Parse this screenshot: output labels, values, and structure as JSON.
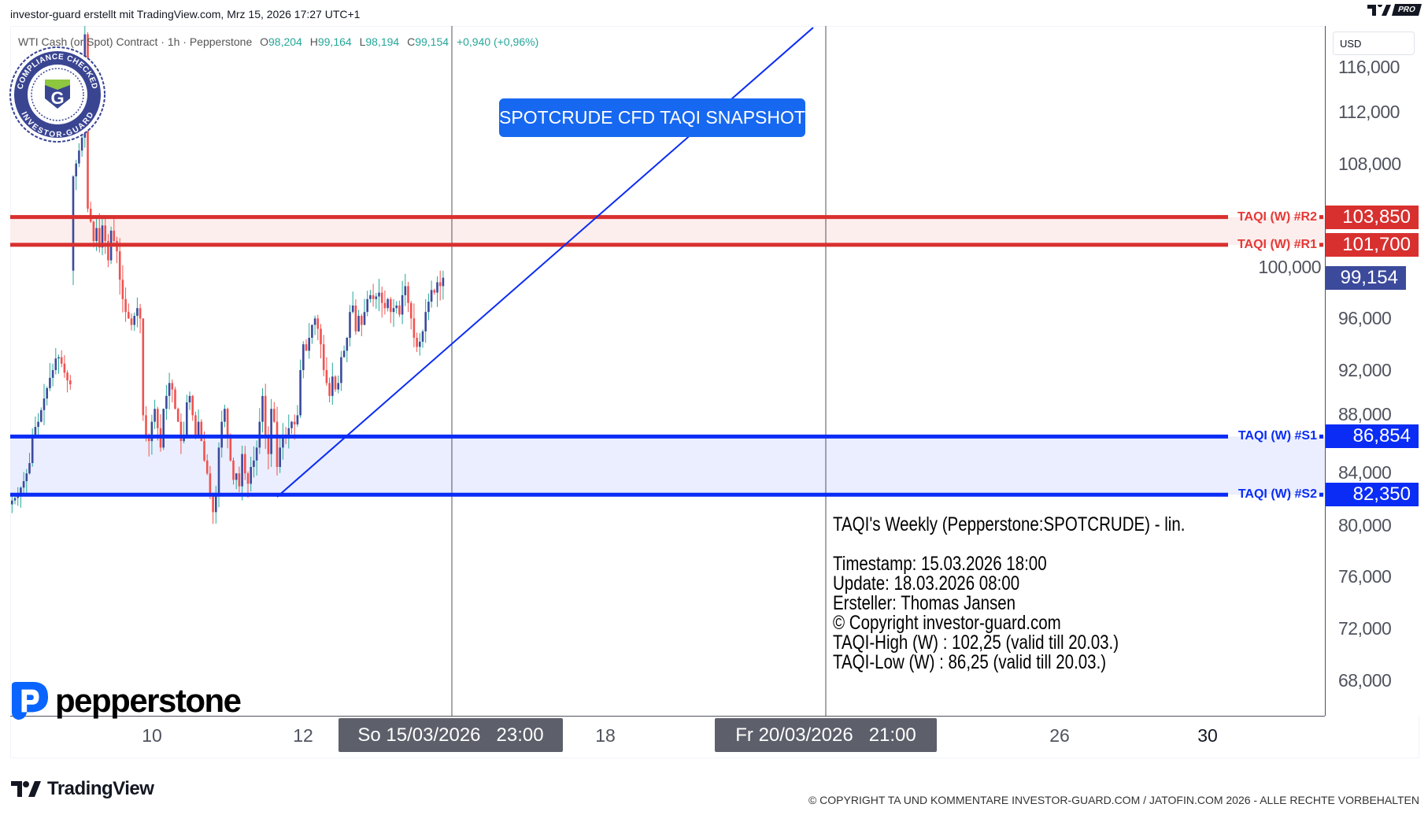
{
  "header": {
    "title": "investor-guard erstellt mit TradingView.com, Mrz 15, 2026 17:27 UTC+1",
    "badge": "PRO"
  },
  "legend": {
    "symbol": "WTI Cash (or Spot) Contract · 1h · Pepperstone",
    "open_label": "O",
    "open": "98,204",
    "high_label": "H",
    "high": "99,164",
    "low_label": "L",
    "low": "98,194",
    "close_label": "C",
    "close": "99,154",
    "change": "+0,940 (+0,96%)"
  },
  "price_axis": {
    "currency": "USD",
    "ticks": [
      "116,000",
      "112,000",
      "108,000",
      "100,000",
      "96,000",
      "92,000",
      "88,000",
      "84,000",
      "80,000",
      "76,000",
      "72,000",
      "68,000"
    ],
    "tick_values": [
      116000,
      112000,
      108000,
      100000,
      96000,
      92000,
      88000,
      84000,
      80000,
      76000,
      72000,
      68000
    ]
  },
  "levels": [
    {
      "label": "TAQI (W) #R2",
      "price": 103850,
      "price_text": "103,850",
      "color": "#d8302f"
    },
    {
      "label": "TAQI (W) #R1",
      "price": 101700,
      "price_text": "101,700",
      "color": "#d8302f"
    },
    {
      "label": "TAQI (W) #S1",
      "price": 86854,
      "price_text": "86,854",
      "color": "#0a2cf5"
    },
    {
      "label": "TAQI (W) #S2",
      "price": 82350,
      "price_text": "82,350",
      "color": "#0a2cf5"
    }
  ],
  "current_price": {
    "price": 99154,
    "text": "99,154",
    "color": "#3c4a9c"
  },
  "colors": {
    "up_body": "#3c4a9c",
    "up_wick": "#26a69a",
    "down": "#ef5350",
    "resistance_zone": "#fdeeee",
    "support_zone": "#eaeefe",
    "trendline": "#0a2cf5",
    "note_bg": "#1768f0"
  },
  "candles_close": [
    81.9,
    82.1,
    82.4,
    82.9,
    83.4,
    84.0,
    84.8,
    86.9,
    87.6,
    88.0,
    88.9,
    89.8,
    90.6,
    91.4,
    92.0,
    92.9,
    93.0,
    92.5,
    91.8,
    91.2,
    90.9,
    107.0,
    108.0,
    109.0,
    110.0,
    118.0,
    104.5,
    103.5,
    102.0,
    103.0,
    101.5,
    103.2,
    102.0,
    100.5,
    102.8,
    102.0,
    101.2,
    99.0,
    97.5,
    96.5,
    96.0,
    95.5,
    96.2,
    96.8,
    96.0,
    88.5,
    87.0,
    86.5,
    88.0,
    89.0,
    87.5,
    86.0,
    89.0,
    90.0,
    91.0,
    90.5,
    89.0,
    88.0,
    86.5,
    87.0,
    89.5,
    90.0,
    88.5,
    87.0,
    88.0,
    86.5,
    85.0,
    84.0,
    82.5,
    81.0,
    82.5,
    86.0,
    88.0,
    89.0,
    87.0,
    85.0,
    83.5,
    84.0,
    83.0,
    85.5,
    84.0,
    83.2,
    84.5,
    85.0,
    86.0,
    88.0,
    90.0,
    87.0,
    85.5,
    89.0,
    88.0,
    84.5,
    86.0,
    87.0,
    86.8,
    87.5,
    88.0,
    87.8,
    88.5,
    92.0,
    94.0,
    93.5,
    94.5,
    95.5,
    96.0,
    95.2,
    94.0,
    92.0,
    91.0,
    90.0,
    91.5,
    90.5,
    91.0,
    93.0,
    93.5,
    94.5,
    96.5,
    97.0,
    95.0,
    96.2,
    95.5,
    96.5,
    97.5,
    97.8,
    97.5,
    97.7,
    98.0,
    97.2,
    96.8,
    97.5,
    96.5,
    96.8,
    97.0,
    96.3,
    97.8,
    98.5,
    97.2,
    96.0,
    94.5,
    93.8,
    94.2,
    95.0,
    96.5,
    97.3,
    98.2,
    98.0,
    98.8,
    98.5,
    99.154
  ],
  "note": {
    "text": "SPOTCRUDE CFD TAQI SNAPSHOT"
  },
  "info": {
    "title": "TAQI's Weekly (Pepperstone:SPOTCRUDE) - lin.",
    "timestamp": "Timestamp: 15.03.2026 18:00",
    "update": "Update: 18.03.2026 08:00",
    "author": "Ersteller: Thomas Jansen",
    "copyright": "© Copyright investor-guard.com",
    "high": "TAQI-High (W) : 102,25 (valid till 20.03.)",
    "low": "TAQI-Low (W) : 86,25 (valid till 20.03.)"
  },
  "time_axis": {
    "ticks": [
      "10",
      "12",
      "18",
      "26",
      "30"
    ],
    "cursor_start": "So 15/03/2026   23:00",
    "cursor_end": "Fr 20/03/2026   21:00"
  },
  "seal": {
    "top_text": "COMPLIANCE CHECKED",
    "bottom_text": "INVESTOR-GUARD",
    "letter": "G"
  },
  "broker_logo": {
    "text": "pepperstone"
  },
  "footer": {
    "logo_text": "TradingView",
    "copyright": "© COPYRIGHT TA UND KOMMENTARE INVESTOR-GUARD.COM / JATOFIN.COM 2026 - ALLE RECHTE VORBEHALTEN"
  }
}
